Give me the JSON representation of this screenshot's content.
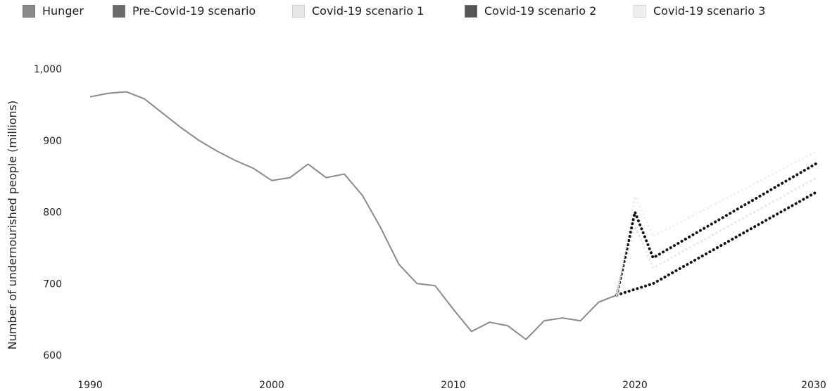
{
  "legend": [
    {
      "label": "Hunger",
      "color": "#8a8a8a"
    },
    {
      "label": "Pre-Covid-19 scenario",
      "color": "#6a6a6a"
    },
    {
      "label": "Covid-19 scenario 1",
      "color": "#e6e6e6"
    },
    {
      "label": "Covid-19 scenario 2",
      "color": "#555555"
    },
    {
      "label": "Covid-19 scenario 3",
      "color": "#efefef"
    }
  ],
  "chart_data": {
    "type": "line",
    "title": "",
    "xlabel": "",
    "ylabel": "Number of undernourished people (millions)",
    "xlim": [
      1990,
      2030
    ],
    "ylim": [
      600,
      1000
    ],
    "x_ticks": [
      "1990",
      "2000",
      "2010",
      "2020",
      "2030"
    ],
    "y_ticks": [
      "600",
      "700",
      "800",
      "900",
      "1,000"
    ],
    "grid": false,
    "legend_position": "top",
    "series": [
      {
        "name": "Hunger",
        "style": "solid",
        "color": "#8a8a8a",
        "points": [
          [
            1990,
            961
          ],
          [
            1991,
            966
          ],
          [
            1992,
            968
          ],
          [
            1993,
            958
          ],
          [
            1994,
            938
          ],
          [
            1995,
            918
          ],
          [
            1996,
            900
          ],
          [
            1997,
            885
          ],
          [
            1998,
            872
          ],
          [
            1999,
            861
          ],
          [
            2000,
            844
          ],
          [
            2001,
            848
          ],
          [
            2002,
            867
          ],
          [
            2003,
            848
          ],
          [
            2004,
            853
          ],
          [
            2005,
            823
          ],
          [
            2006,
            778
          ],
          [
            2007,
            727
          ],
          [
            2008,
            700
          ],
          [
            2009,
            697
          ],
          [
            2010,
            664
          ],
          [
            2011,
            633
          ],
          [
            2012,
            646
          ],
          [
            2013,
            641
          ],
          [
            2014,
            622
          ],
          [
            2015,
            648
          ],
          [
            2016,
            652
          ],
          [
            2017,
            648
          ],
          [
            2018,
            674
          ],
          [
            2019,
            684
          ]
        ]
      },
      {
        "name": "Pre-Covid-19 scenario",
        "style": "dotted",
        "color": "#111111",
        "points": [
          [
            2019,
            684
          ],
          [
            2021,
            700
          ],
          [
            2030,
            828
          ]
        ]
      },
      {
        "name": "Covid-19 scenario 1",
        "style": "dotted",
        "color": "#e6e6e6",
        "points": [
          [
            2019,
            684
          ],
          [
            2020,
            780
          ],
          [
            2021,
            722
          ],
          [
            2030,
            848
          ]
        ]
      },
      {
        "name": "Covid-19 scenario 2",
        "style": "dotted",
        "color": "#111111",
        "points": [
          [
            2019,
            684
          ],
          [
            2020,
            800
          ],
          [
            2021,
            736
          ],
          [
            2030,
            868
          ]
        ]
      },
      {
        "name": "Covid-19 scenario 3",
        "style": "dotted",
        "color": "#efefef",
        "points": [
          [
            2019,
            684
          ],
          [
            2020,
            822
          ],
          [
            2021,
            766
          ],
          [
            2030,
            885
          ]
        ]
      }
    ]
  }
}
